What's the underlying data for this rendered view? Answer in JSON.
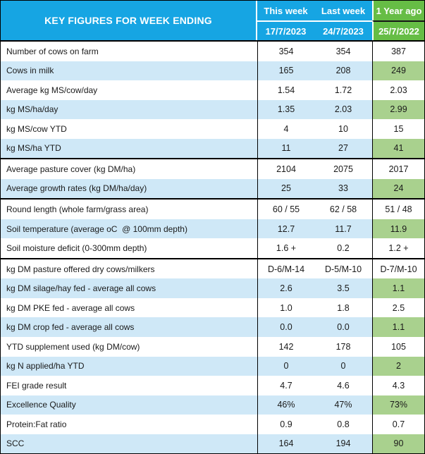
{
  "colors": {
    "header_blue": "#16A5E3",
    "header_green": "#66BD45",
    "row_highlight_blue": "#CFE8F7",
    "year_ago_cell_green": "#A9D18E",
    "text": "#1a1a1a",
    "grid_line": "#000000"
  },
  "table": {
    "title": "KEY FIGURES FOR WEEK ENDING",
    "columns": {
      "this_week": {
        "label": "This week",
        "date": "17/7/2023"
      },
      "last_week": {
        "label": "Last week",
        "date": "24/7/2023"
      },
      "year_ago": {
        "label": "1 Year ago",
        "date": "25/7/2022"
      }
    },
    "rows": [
      {
        "label": "Number of cows on farm",
        "this_week": "354",
        "last_week": "354",
        "year_ago": "387",
        "shaded": false,
        "section_break": false
      },
      {
        "label": "Cows in milk",
        "this_week": "165",
        "last_week": "208",
        "year_ago": "249",
        "shaded": true,
        "section_break": false
      },
      {
        "label": "Average kg MS/cow/day",
        "this_week": "1.54",
        "last_week": "1.72",
        "year_ago": "2.03",
        "shaded": false,
        "section_break": false
      },
      {
        "label": "kg MS/ha/day",
        "this_week": "1.35",
        "last_week": "2.03",
        "year_ago": "2.99",
        "shaded": true,
        "section_break": false
      },
      {
        "label": "kg MS/cow YTD",
        "this_week": "4",
        "last_week": "10",
        "year_ago": "15",
        "shaded": false,
        "section_break": false
      },
      {
        "label": "kg MS/ha YTD",
        "this_week": "11",
        "last_week": "27",
        "year_ago": "41",
        "shaded": true,
        "section_break": false
      },
      {
        "label": "Average pasture cover (kg DM/ha)",
        "this_week": "2104",
        "last_week": "2075",
        "year_ago": "2017",
        "shaded": false,
        "section_break": true
      },
      {
        "label": "Average growth rates (kg DM/ha/day)",
        "this_week": "25",
        "last_week": "33",
        "year_ago": "24",
        "shaded": true,
        "section_break": false
      },
      {
        "label": "Round length (whole farm/grass area)",
        "this_week": "60 / 55",
        "last_week": "62 / 58",
        "year_ago": "51 / 48",
        "shaded": false,
        "section_break": true
      },
      {
        "label": "Soil temperature (average oC  @ 100mm depth)",
        "this_week": "12.7",
        "last_week": "11.7",
        "year_ago": "11.9",
        "shaded": true,
        "section_break": false
      },
      {
        "label": "Soil moisture deficit (0-300mm depth)",
        "this_week": "1.6 +",
        "last_week": "0.2",
        "year_ago": "1.2 +",
        "shaded": false,
        "section_break": false
      },
      {
        "label": "kg DM pasture offered dry cows/milkers",
        "this_week": "D-6/M-14",
        "last_week": "D-5/M-10",
        "year_ago": "D-7/M-10",
        "shaded": false,
        "section_break": true
      },
      {
        "label": "kg DM silage/hay fed - average all cows",
        "this_week": "2.6",
        "last_week": "3.5",
        "year_ago": "1.1",
        "shaded": true,
        "section_break": false
      },
      {
        "label": "kg DM PKE fed - average all cows",
        "this_week": "1.0",
        "last_week": "1.8",
        "year_ago": "2.5",
        "shaded": false,
        "section_break": false
      },
      {
        "label": "kg DM crop fed - average all cows",
        "this_week": "0.0",
        "last_week": "0.0",
        "year_ago": "1.1",
        "shaded": true,
        "section_break": false
      },
      {
        "label": "YTD supplement used (kg DM/cow)",
        "this_week": "142",
        "last_week": "178",
        "year_ago": "105",
        "shaded": false,
        "section_break": false
      },
      {
        "label": "kg N applied/ha YTD",
        "this_week": "0",
        "last_week": "0",
        "year_ago": "2",
        "shaded": true,
        "section_break": false
      },
      {
        "label": "FEI grade result",
        "this_week": "4.7",
        "last_week": "4.6",
        "year_ago": "4.3",
        "shaded": false,
        "section_break": false
      },
      {
        "label": "Excellence Quality",
        "this_week": "46%",
        "last_week": "47%",
        "year_ago": "73%",
        "shaded": true,
        "section_break": false
      },
      {
        "label": "Protein:Fat ratio",
        "this_week": "0.9",
        "last_week": "0.8",
        "year_ago": "0.7",
        "shaded": false,
        "section_break": false
      },
      {
        "label": "SCC",
        "this_week": "164",
        "last_week": "194",
        "year_ago": "90",
        "shaded": true,
        "section_break": false
      }
    ]
  }
}
